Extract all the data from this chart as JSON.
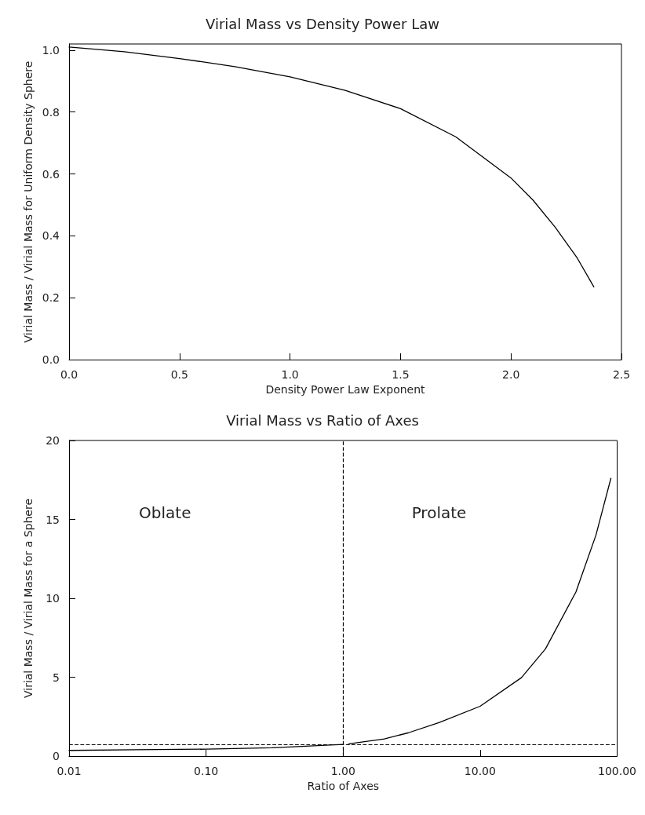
{
  "chart_data": [
    {
      "type": "line",
      "title": "Virial Mass vs Density Power Law",
      "xlabel": "Density Power Law Exponent",
      "ylabel": "Virial Mass / Virial Mass for Uniform Density Sphere",
      "xlim": [
        0,
        2.5
      ],
      "ylim": [
        0,
        1.02
      ],
      "xticks": [
        {
          "value": 0,
          "label": "0.0"
        },
        {
          "value": 0.5,
          "label": "0.5"
        },
        {
          "value": 1,
          "label": "1.0"
        },
        {
          "value": 1.5,
          "label": "1.5"
        },
        {
          "value": 2,
          "label": "2.0"
        },
        {
          "value": 2.5,
          "label": "2.5"
        }
      ],
      "yticks": [
        {
          "value": 0,
          "label": "0.0"
        },
        {
          "value": 0.2,
          "label": "0.2"
        },
        {
          "value": 0.4,
          "label": "0.4"
        },
        {
          "value": 0.6,
          "label": "0.6"
        },
        {
          "value": 0.8,
          "label": "0.8"
        },
        {
          "value": 1,
          "label": "1.0"
        }
      ],
      "grid": false,
      "marker": "none",
      "line_style": "solid",
      "series": [
        {
          "color": "#000000",
          "x": [
            0,
            0.25,
            0.5,
            0.75,
            1,
            1.25,
            1.5,
            1.75,
            2,
            2.1,
            2.2,
            2.3,
            2.375
          ],
          "values": [
            1.01,
            0.995,
            0.973,
            0.947,
            0.914,
            0.87,
            0.811,
            0.72,
            0.587,
            0.515,
            0.428,
            0.328,
            0.235
          ]
        }
      ]
    },
    {
      "type": "line",
      "title": "Virial Mass vs Ratio of Axes",
      "xlabel": "Ratio of Axes",
      "ylabel": "Virial Mass / Virial Mass for a Sphere",
      "log": "x",
      "xlim": [
        0.01,
        100
      ],
      "ylim": [
        0,
        20
      ],
      "xticks": [
        {
          "value": 0.01,
          "label": "0.01"
        },
        {
          "value": 0.1,
          "label": "0.10"
        },
        {
          "value": 1,
          "label": "1.00"
        },
        {
          "value": 10,
          "label": "10.00"
        },
        {
          "value": 100,
          "label": "100.00"
        }
      ],
      "yticks": [
        0,
        5,
        10,
        15,
        20
      ],
      "grid": false,
      "marker": "none",
      "line_style": "solid",
      "ref_lines": [
        {
          "axis": "x",
          "value": 1,
          "line_style": "dashed",
          "color": "#000000"
        },
        {
          "axis": "y",
          "value": 0.75,
          "line_style": "dashed",
          "color": "#000000"
        }
      ],
      "annotations": [
        "Oblate",
        "Prolate"
      ],
      "series": [
        {
          "color": "#000000",
          "x": [
            0.01,
            0.03,
            0.1,
            0.3,
            0.5,
            0.7,
            1
          ],
          "values": [
            0.36,
            0.4,
            0.44,
            0.53,
            0.62,
            0.68,
            0.74
          ]
        },
        {
          "color": "#000000",
          "x": [
            1.1,
            2,
            3,
            5,
            10,
            20,
            30,
            50,
            70,
            90
          ],
          "values": [
            0.78,
            1.09,
            1.48,
            2.12,
            3.16,
            4.97,
            6.8,
            10.4,
            14.0,
            17.6
          ]
        }
      ]
    }
  ]
}
